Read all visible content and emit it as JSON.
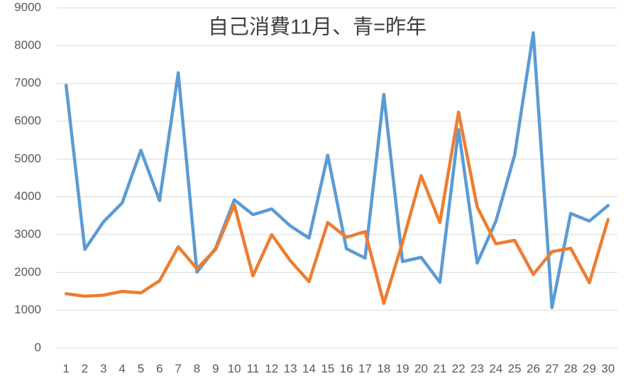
{
  "chart_data": {
    "type": "line",
    "title": "自己消費11月、青=昨年",
    "categories": [
      "1",
      "2",
      "3",
      "4",
      "5",
      "6",
      "7",
      "8",
      "9",
      "10",
      "11",
      "12",
      "13",
      "14",
      "15",
      "16",
      "17",
      "18",
      "19",
      "20",
      "21",
      "22",
      "23",
      "24",
      "25",
      "26",
      "27",
      "28",
      "29",
      "30"
    ],
    "series": [
      {
        "color": "#5b9bd5",
        "values": [
          6950,
          2610,
          3340,
          3840,
          5230,
          3900,
          7280,
          2010,
          2640,
          3920,
          3530,
          3680,
          3230,
          2910,
          5100,
          2630,
          2380,
          6710,
          2290,
          2400,
          1740,
          5780,
          2250,
          3360,
          5100,
          8340,
          1070,
          3560,
          3360,
          3770
        ]
      },
      {
        "color": "#ed7d31",
        "values": [
          1440,
          1370,
          1400,
          1500,
          1460,
          1780,
          2680,
          2100,
          2610,
          3790,
          1910,
          3000,
          2310,
          1760,
          3320,
          2930,
          3080,
          1180,
          2790,
          4560,
          3320,
          6240,
          3730,
          2760,
          2850,
          1950,
          2550,
          2640,
          1730,
          3400
        ]
      }
    ],
    "ylim": [
      0,
      9000
    ],
    "yticks": [
      0,
      1000,
      2000,
      3000,
      4000,
      5000,
      6000,
      7000,
      8000,
      9000
    ],
    "grid": true
  }
}
